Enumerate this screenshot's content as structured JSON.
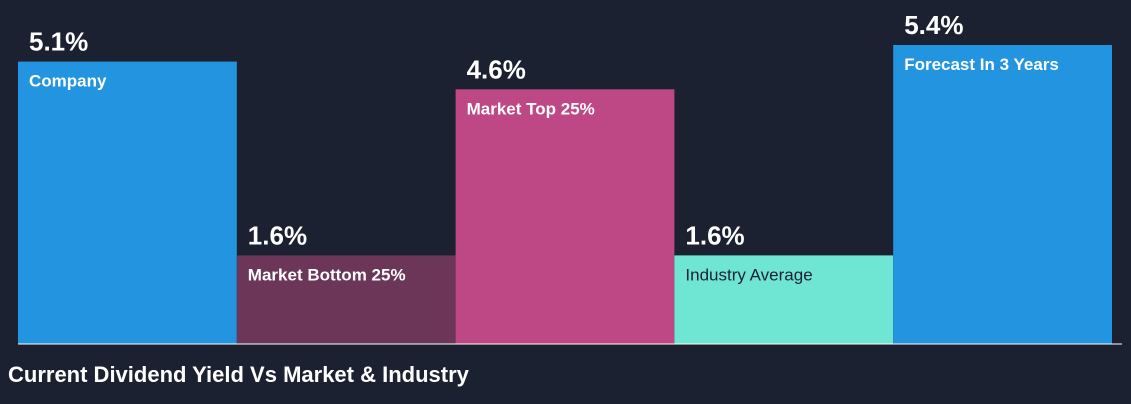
{
  "chart_data": {
    "type": "bar",
    "categories": [
      "Company",
      "Market Bottom 25%",
      "Market Top 25%",
      "Industry Average",
      "Forecast In 3 Years"
    ],
    "values": [
      5.1,
      1.6,
      4.6,
      1.6,
      5.4
    ],
    "value_labels": [
      "5.1%",
      "1.6%",
      "4.6%",
      "1.6%",
      "5.4%"
    ],
    "colors": [
      "#2394e0",
      "#6b3658",
      "#bd4885",
      "#6fe6d4",
      "#2394e0"
    ],
    "label_colors": [
      "#ffffff",
      "#ffffff",
      "#ffffff",
      "#1b2130",
      "#ffffff"
    ],
    "ylim": [
      0,
      5.4
    ],
    "grid": false,
    "legend": "none"
  },
  "caption": "Current Dividend Yield Vs Market & Industry",
  "background_color": "#1b2130"
}
